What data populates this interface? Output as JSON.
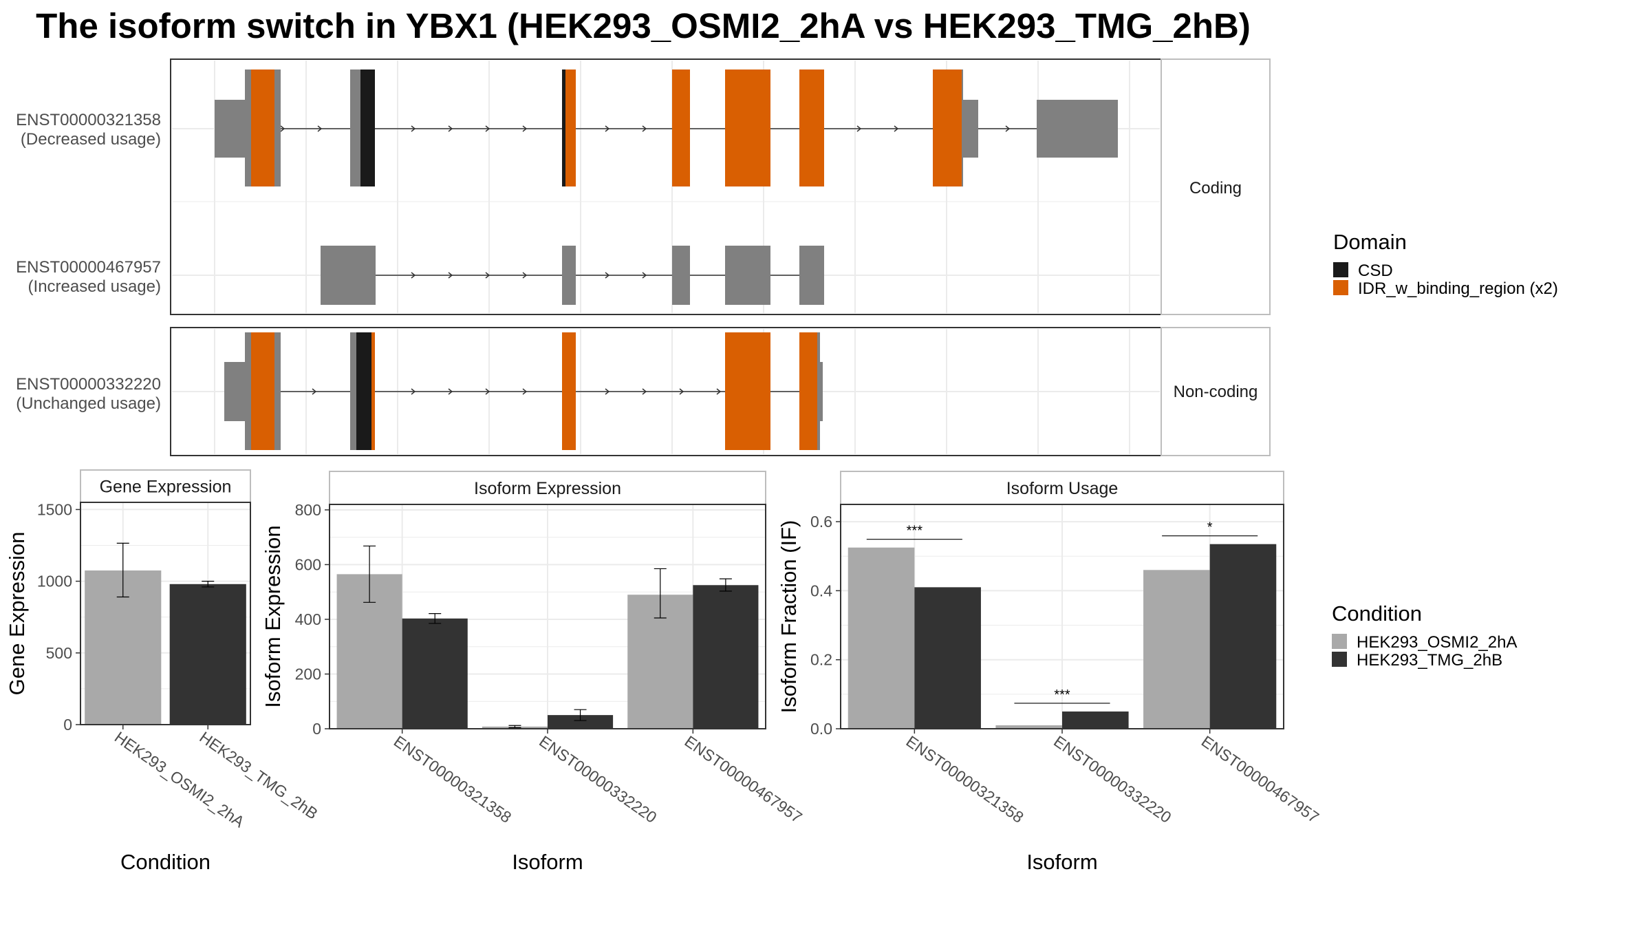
{
  "title": "The isoform switch in YBX1 (HEK293_OSMI2_2hA vs HEK293_TMG_2hB)",
  "colors": {
    "exon": "#808080",
    "csd": "#1a1a1a",
    "idr": "#d95f02",
    "cond_a": "#a9a9a9",
    "cond_b": "#333333",
    "grid": "#ebebeb",
    "border": "#333333",
    "strip_border": "#bdbdbd"
  },
  "panels": {
    "coding": "Coding",
    "noncoding": "Non-coding"
  },
  "transcripts": [
    {
      "id": "ENST00000321358",
      "note": "(Decreased usage)"
    },
    {
      "id": "ENST00000467957",
      "note": "(Increased usage)"
    },
    {
      "id": "ENST00000332220",
      "note": "(Unchanged usage)"
    }
  ],
  "domain_legend": {
    "title": "Domain",
    "items": [
      {
        "label": "CSD",
        "color": "#1a1a1a"
      },
      {
        "label": "IDR_w_binding_region (x2)",
        "color": "#d95f02"
      }
    ]
  },
  "condition_legend": {
    "title": "Condition",
    "items": [
      {
        "label": "HEK293_OSMI2_2hA",
        "color": "#a9a9a9"
      },
      {
        "label": "HEK293_TMG_2hB",
        "color": "#333333"
      }
    ]
  },
  "chart_data": [
    {
      "type": "bar",
      "title": "Gene Expression",
      "xlabel": "Condition",
      "ylabel": "Gene Expression",
      "ylim": [
        0,
        1550
      ],
      "yticks": [
        0,
        500,
        1000,
        1500
      ],
      "categories": [
        "HEK293_OSMI2_2hA",
        "HEK293_TMG_2hB"
      ],
      "values": [
        1075,
        980
      ],
      "errors": [
        [
          890,
          1265
        ],
        [
          960,
          1000
        ]
      ]
    },
    {
      "type": "bar",
      "title": "Isoform Expression",
      "xlabel": "Isoform",
      "ylabel": "Isoform Expression",
      "ylim": [
        0,
        820
      ],
      "yticks": [
        0,
        200,
        400,
        600,
        800
      ],
      "categories": [
        "ENST00000321358",
        "ENST00000332220",
        "ENST00000467957"
      ],
      "series": [
        {
          "name": "HEK293_OSMI2_2hA",
          "values": [
            565,
            8,
            490
          ],
          "errors": [
            [
              462,
              668
            ],
            [
              4,
              12
            ],
            [
              405,
              585
            ]
          ]
        },
        {
          "name": "HEK293_TMG_2hB",
          "values": [
            403,
            50,
            525
          ],
          "errors": [
            [
              385,
              421
            ],
            [
              30,
              70
            ],
            [
              503,
              548
            ]
          ]
        }
      ]
    },
    {
      "type": "bar",
      "title": "Isoform Usage",
      "xlabel": "Isoform",
      "ylabel": "Isoform Fraction (IF)",
      "ylim": [
        0,
        0.65
      ],
      "yticks": [
        0.0,
        0.2,
        0.4,
        0.6
      ],
      "categories": [
        "ENST00000321358",
        "ENST00000332220",
        "ENST00000467957"
      ],
      "series": [
        {
          "name": "HEK293_OSMI2_2hA",
          "values": [
            0.525,
            0.01,
            0.46
          ]
        },
        {
          "name": "HEK293_TMG_2hB",
          "values": [
            0.41,
            0.05,
            0.535
          ]
        }
      ],
      "significance": [
        "***",
        "***",
        "*"
      ]
    }
  ]
}
